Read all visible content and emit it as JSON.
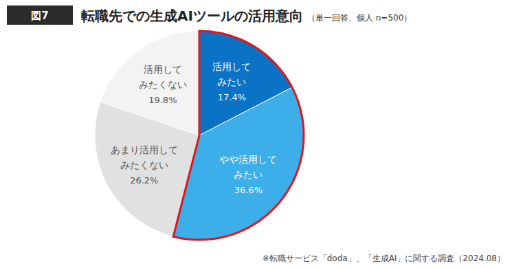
{
  "chart_data": {
    "type": "pie",
    "figure_label": "図7",
    "title": "転職先での生成AIツールの活用意向",
    "subtitle": "（単一回答、個人 n=500）",
    "categories": [
      "活用してみたい",
      "やや活用してみたい",
      "あまり活用してみたくない",
      "活用してみたくない"
    ],
    "values": [
      17.4,
      36.6,
      26.2,
      19.8
    ],
    "value_labels": [
      "17.4%",
      "36.6%",
      "26.2%",
      "19.8%"
    ],
    "colors": [
      "#0b73c6",
      "#3caeea",
      "#e1e1e1",
      "#f3f3f3"
    ],
    "data_labels": true,
    "source": "※転職サービス「doda」、「生成AI」に関する調査（2024.08）"
  }
}
